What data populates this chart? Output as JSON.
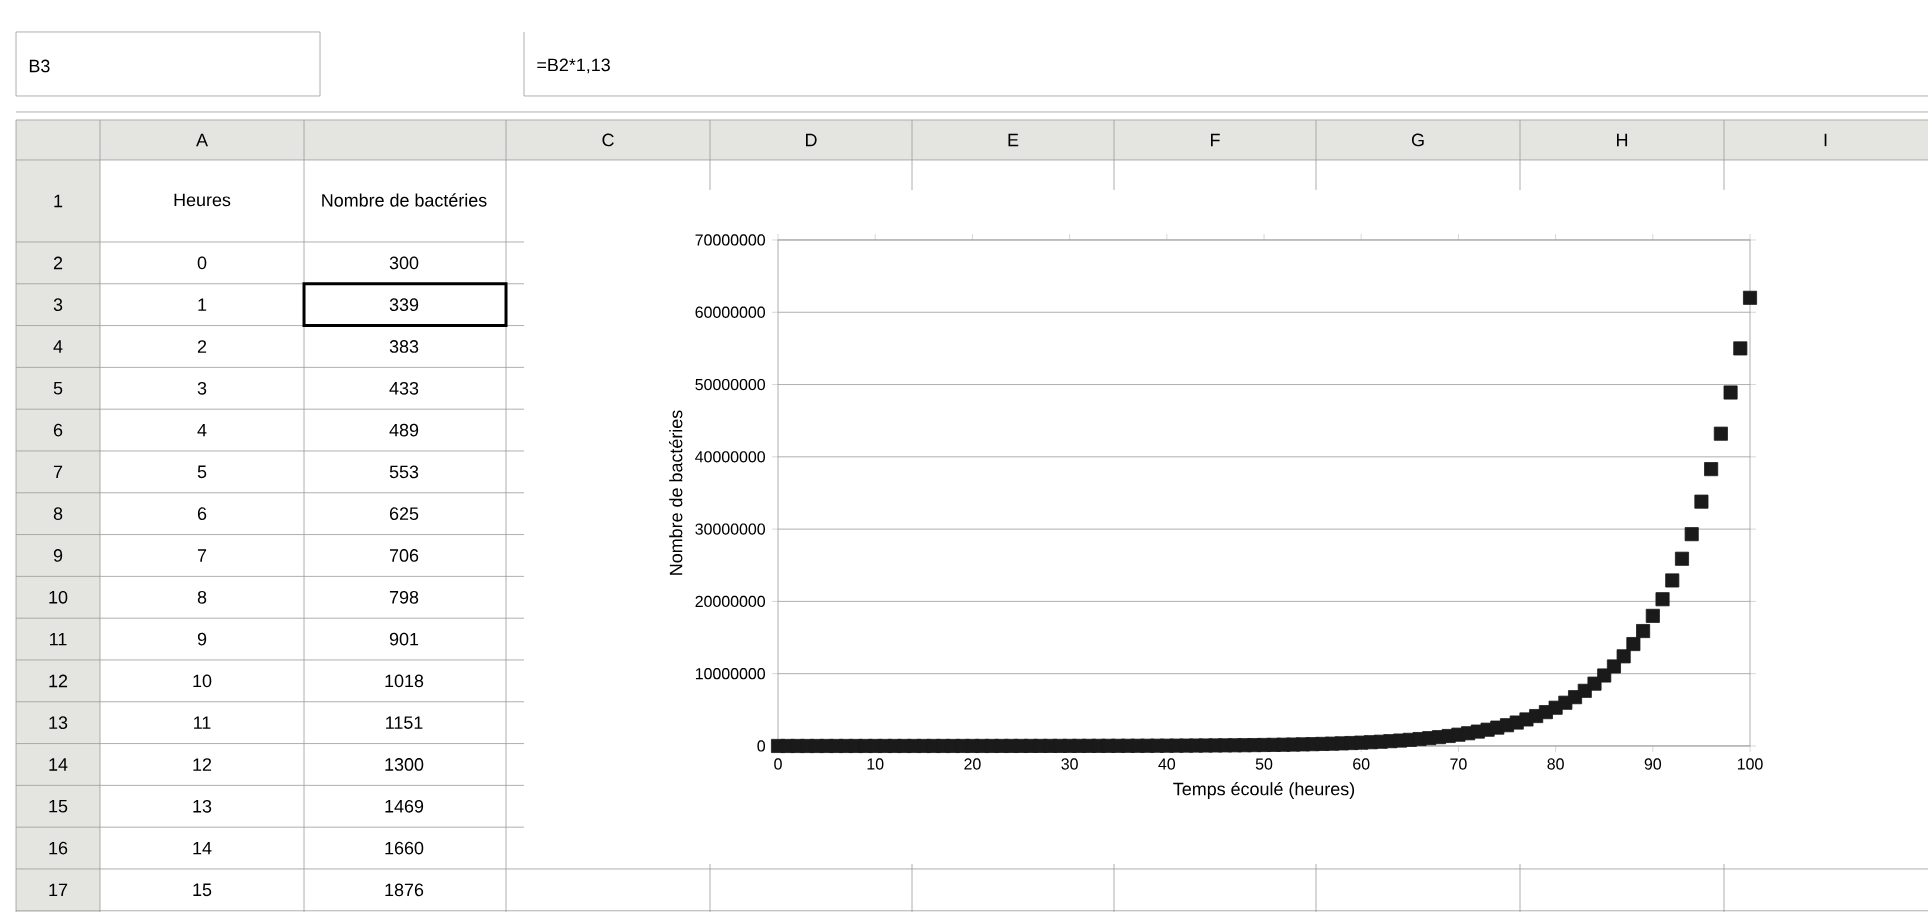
{
  "chart_data": {
    "type": "scatter",
    "xlabel": "Temps écoulé (heures)",
    "ylabel": "Nombre de bactéries",
    "x": [
      0,
      1,
      2,
      3,
      4,
      5,
      6,
      7,
      8,
      9,
      10,
      11,
      12,
      13,
      14,
      15,
      16,
      17,
      18,
      19,
      20,
      21,
      22,
      23,
      24,
      25,
      26,
      27,
      28,
      29,
      30,
      31,
      32,
      33,
      34,
      35,
      36,
      37,
      38,
      39,
      40,
      41,
      42,
      43,
      44,
      45,
      46,
      47,
      48,
      49,
      50,
      51,
      52,
      53,
      54,
      55,
      56,
      57,
      58,
      59,
      60,
      61,
      62,
      63,
      64,
      65,
      66,
      67,
      68,
      69,
      70,
      71,
      72,
      73,
      74,
      75,
      76,
      77,
      78,
      79,
      80,
      81,
      82,
      83,
      84,
      85,
      86,
      87,
      88,
      89,
      90,
      91,
      92,
      93,
      94,
      95,
      96,
      97,
      98,
      99,
      100
    ],
    "values": [
      300,
      339,
      383,
      433,
      489,
      553,
      625,
      706,
      798,
      901,
      1018,
      1151,
      1300,
      1469,
      1660,
      1876,
      2120,
      2400,
      2710,
      3060,
      3460,
      3910,
      4410,
      4990,
      5640,
      6370,
      7200,
      8130,
      9190,
      10400,
      11700,
      13300,
      15000,
      16900,
      19100,
      21600,
      24400,
      27600,
      31200,
      35300,
      39800,
      45000,
      50900,
      57500,
      64900,
      73400,
      82900,
      93700,
      106000,
      120000,
      135000,
      153000,
      173000,
      195000,
      220000,
      249000,
      282000,
      318000,
      359000,
      406000,
      459000,
      519000,
      586000,
      662000,
      748000,
      846000,
      956000,
      1080000,
      1220000,
      1380000,
      1560000,
      1760000,
      1990000,
      2250000,
      2540000,
      2870000,
      3240000,
      3670000,
      4140000,
      4680000,
      5290000,
      5980000,
      6750000,
      7630000,
      8620000,
      9750000,
      11000000,
      12400000,
      14100000,
      15900000,
      18000000,
      20300000,
      22900000,
      25900000,
      29300000,
      33800000,
      38300000,
      43200000,
      48900000,
      55000000,
      62000000
    ],
    "color": "#1a1a1a",
    "marker": "square",
    "grid": "y",
    "xlim": [
      0,
      100
    ],
    "xticks": [
      0,
      10,
      20,
      30,
      40,
      50,
      60,
      70,
      80,
      90,
      100
    ],
    "ylim": [
      0,
      70000000
    ],
    "yticks": [
      0,
      10000000,
      20000000,
      30000000,
      40000000,
      50000000,
      60000000,
      70000000
    ],
    "annotations": [
      "B3",
      "=B2*1,13",
      "Heures",
      "Nombre de bactéries",
      "A",
      "C",
      "D",
      "E",
      "F",
      "G",
      "H",
      "I",
      "1",
      "2",
      "3",
      "4",
      "5",
      "6",
      "7",
      "8",
      "9",
      "10",
      "11",
      "12",
      "13",
      "14",
      "15",
      "16",
      "17",
      "0",
      "1",
      "2",
      "3",
      "4",
      "5",
      "6",
      "7",
      "8",
      "9",
      "10",
      "11",
      "12",
      "13",
      "14",
      "15",
      "300",
      "339",
      "383",
      "433",
      "489",
      "553",
      "625",
      "706",
      "798",
      "901",
      "1018",
      "1151",
      "1300",
      "1469",
      "1660",
      "1876"
    ]
  }
}
